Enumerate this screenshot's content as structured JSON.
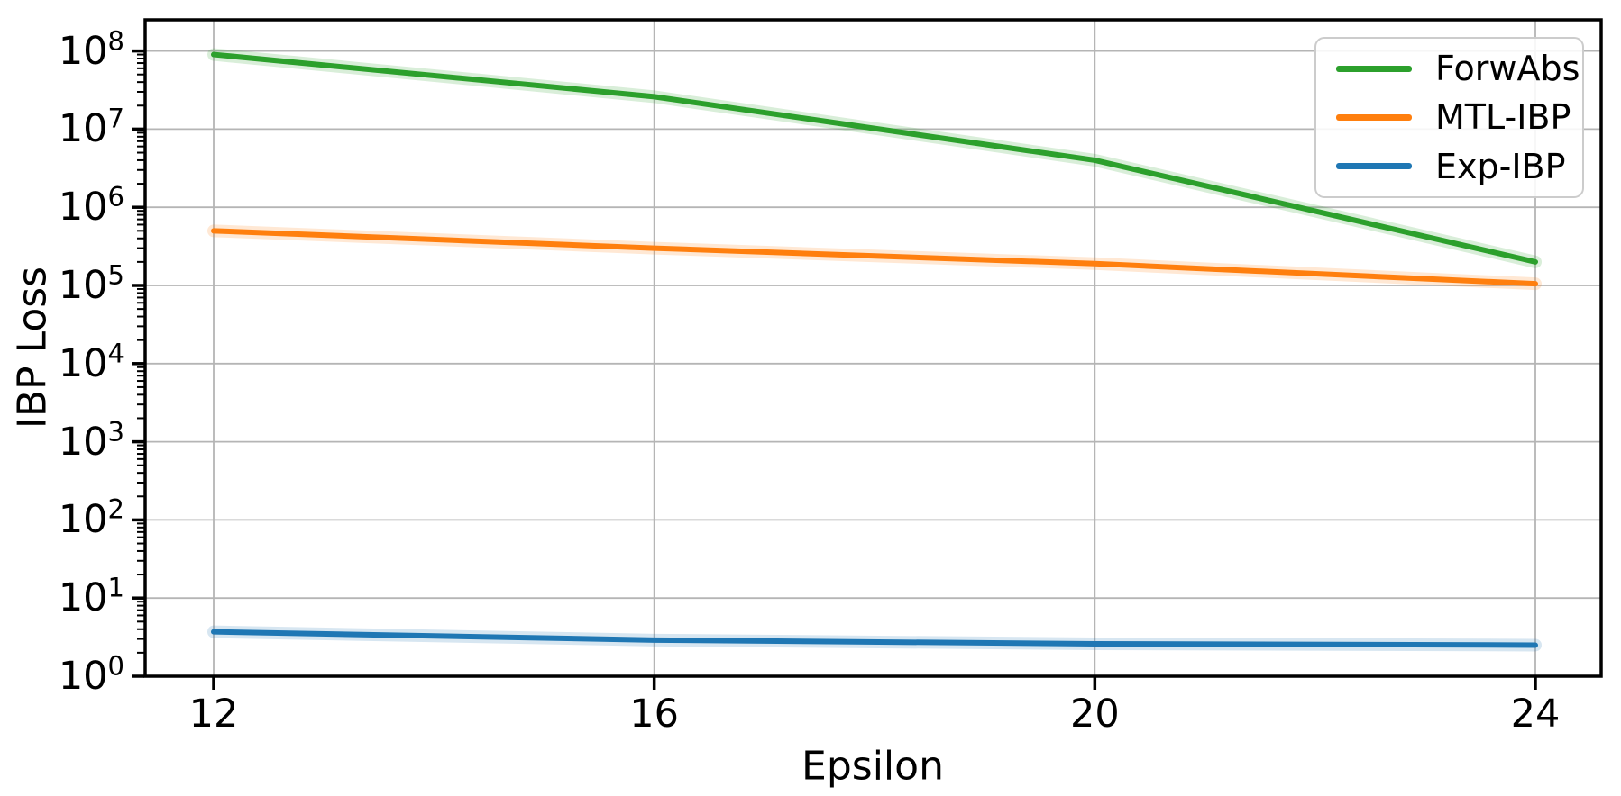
{
  "chart_data": {
    "type": "line",
    "title": "",
    "xlabel": "Epsilon",
    "ylabel": "IBP Loss",
    "x": [
      12,
      16,
      20,
      24
    ],
    "x_tick_labels": [
      "12",
      "16",
      "20",
      "24"
    ],
    "y_scale": "log10",
    "y_tick_exponents": [
      0,
      1,
      2,
      3,
      4,
      5,
      6,
      7,
      8
    ],
    "y_tick_base": "10",
    "xlim": [
      11.38,
      24.6
    ],
    "ylim": [
      1,
      220000000
    ],
    "grid": true,
    "legend_position": "upper-right",
    "series": [
      {
        "name": "ForwAbs",
        "color": "#2ca02c",
        "values": [
          90000000,
          26000000,
          4000000,
          200000
        ]
      },
      {
        "name": "MTL-IBP",
        "color": "#ff7f0e",
        "values": [
          500000,
          300000,
          190000,
          105000
        ]
      },
      {
        "name": "Exp-IBP",
        "color": "#1f77b4",
        "values": [
          3.7,
          2.9,
          2.6,
          2.5
        ]
      }
    ],
    "colors": {
      "grid": "#b5b5b5",
      "spine": "#000000",
      "background": "#ffffff",
      "text": "#000000"
    }
  }
}
